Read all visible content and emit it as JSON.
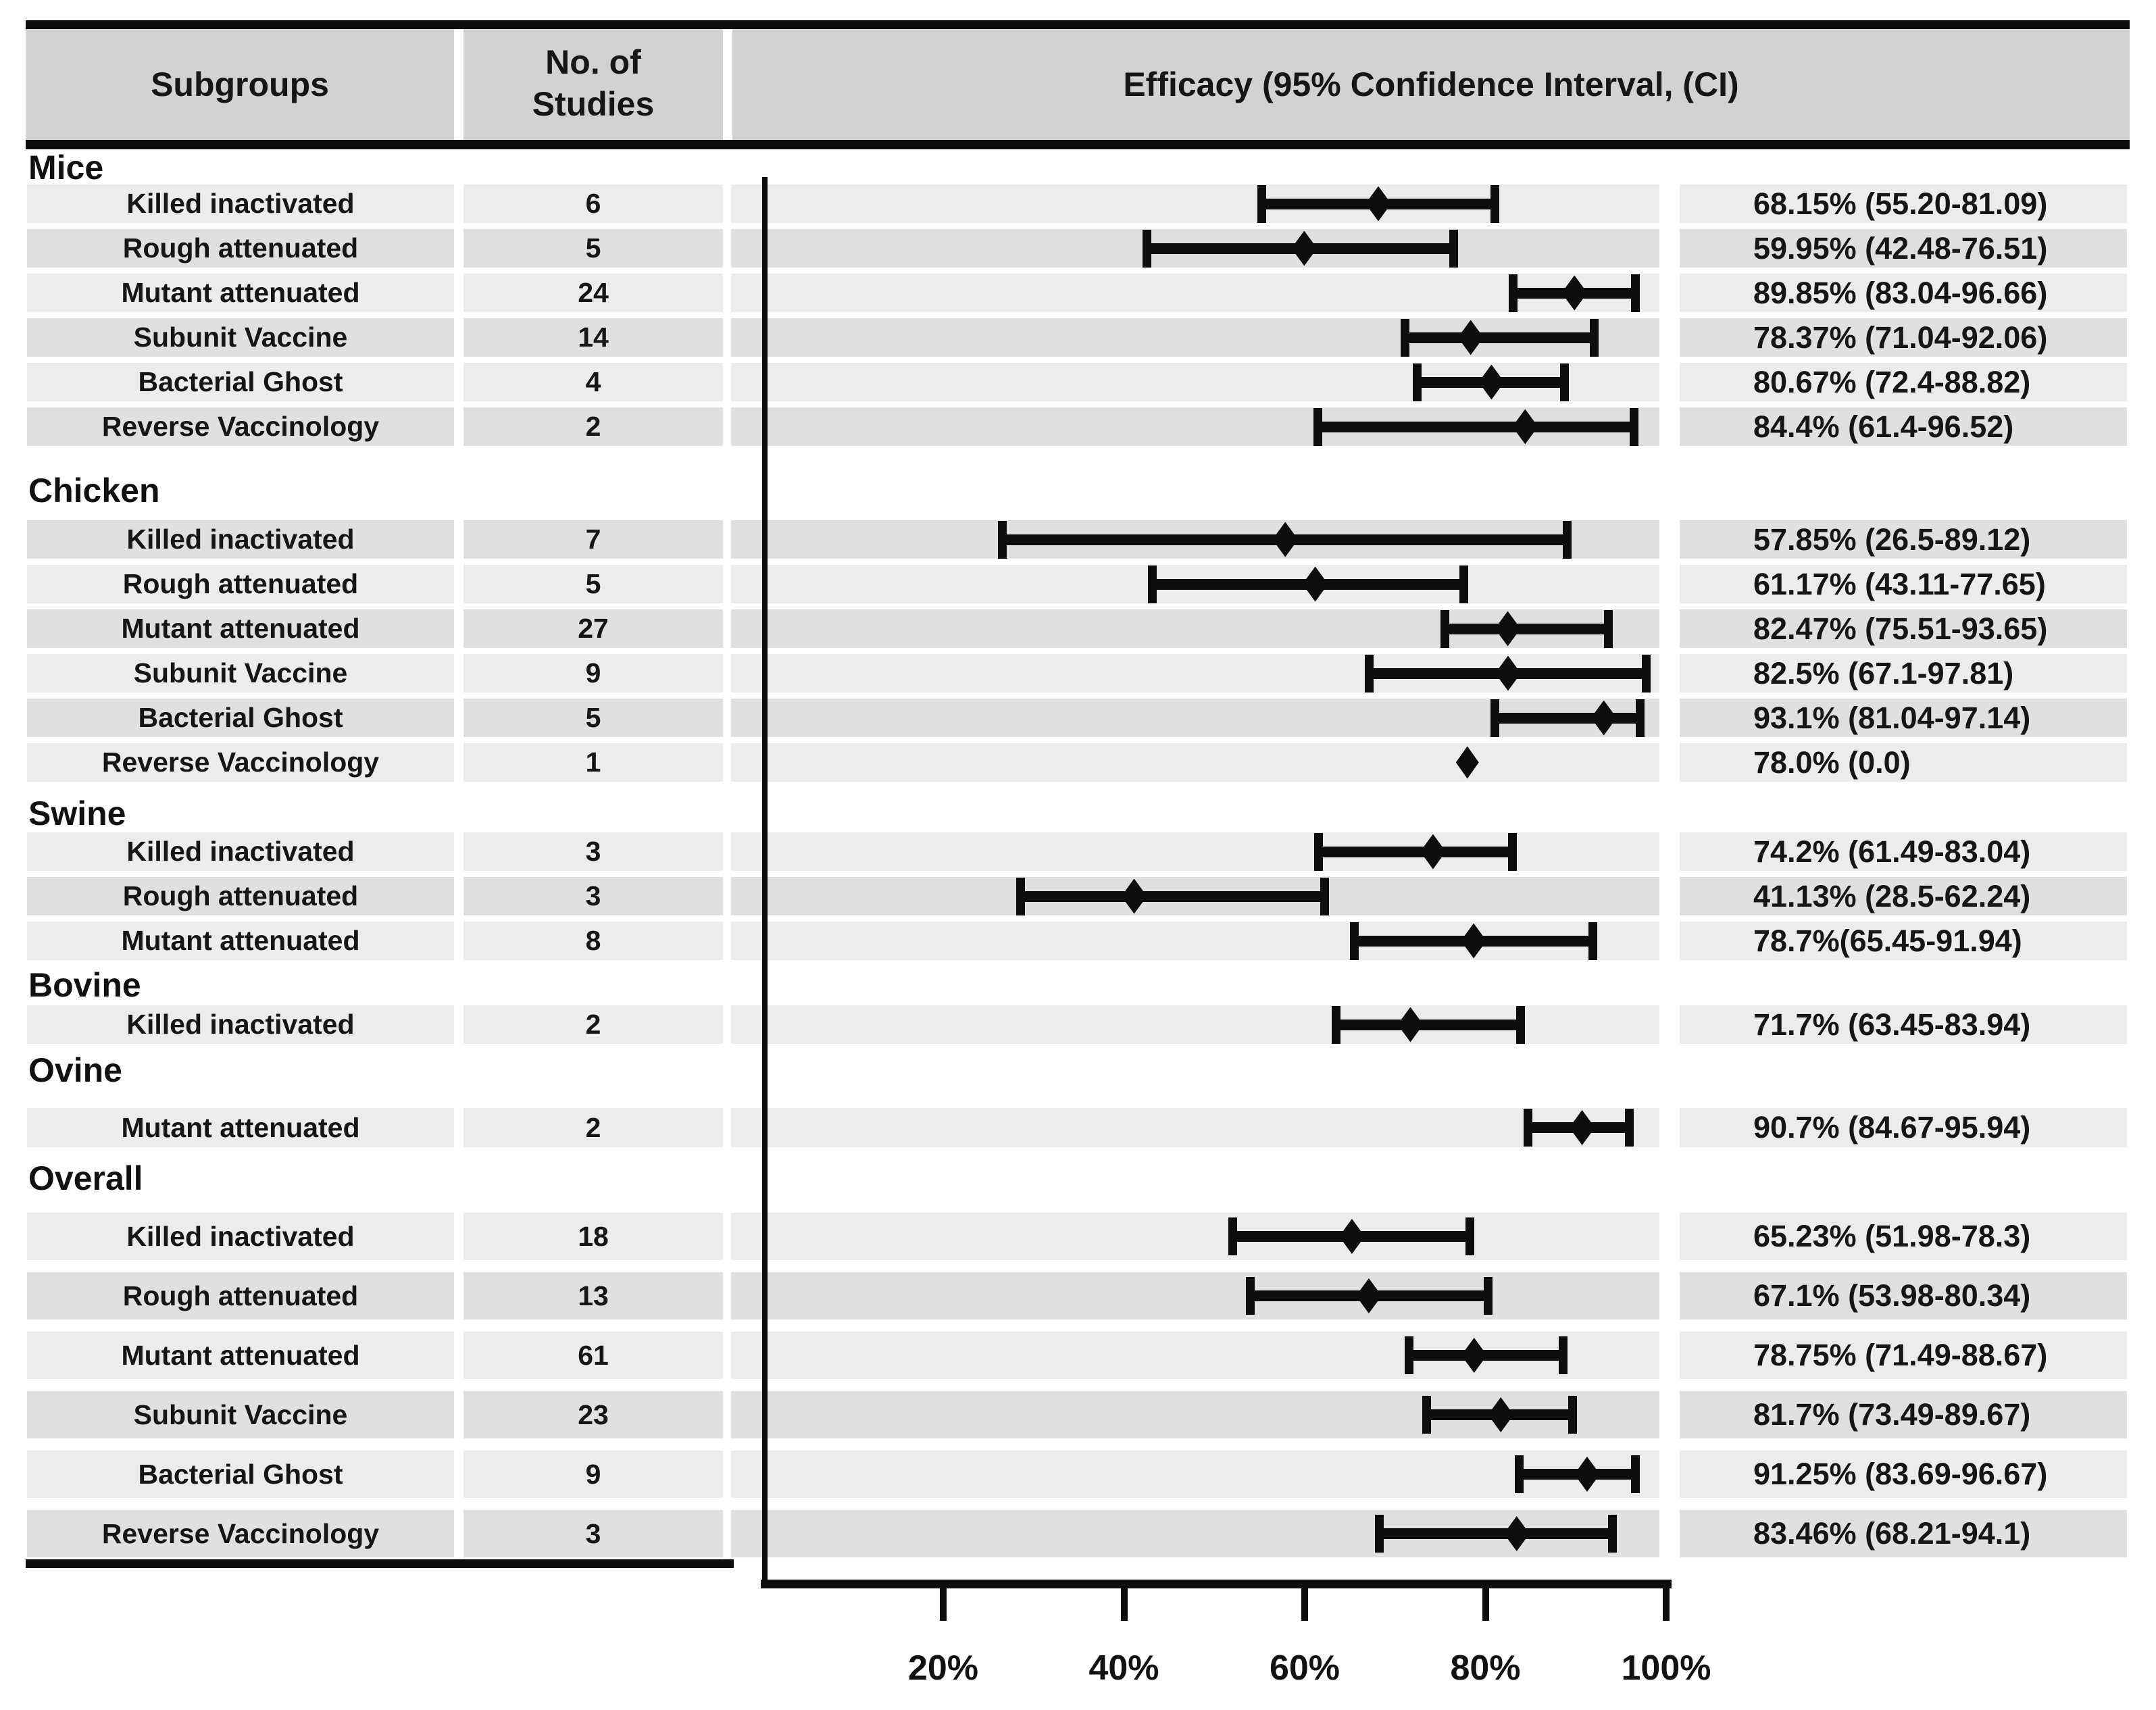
{
  "header": {
    "col_subgroups": "Subgroups",
    "col_studies_line1": "No. of",
    "col_studies_line2": "Studies",
    "col_efficacy": "Efficacy (95% Confidence Interval, (CI)"
  },
  "chart_data": {
    "type": "forest",
    "title": "Efficacy (95% Confidence Interval, (CI)",
    "unit": "%",
    "axis": {
      "xmin": 0,
      "xmax": 105,
      "tick_values": [
        20,
        40,
        60,
        80,
        100
      ],
      "tick_labels": [
        "20%",
        "40%",
        "60%",
        "80%",
        "100%"
      ],
      "grid": false
    },
    "legend": null,
    "groups": [
      {
        "name": "Mice",
        "rows": [
          {
            "label": "Killed inactivated",
            "n_studies": "6",
            "estimate": 68.15,
            "ci_low": 55.2,
            "ci_high": 81.09,
            "text": "68.15% (55.20-81.09)"
          },
          {
            "label": "Rough attenuated",
            "n_studies": "5",
            "estimate": 59.95,
            "ci_low": 42.48,
            "ci_high": 76.51,
            "text": "59.95% (42.48-76.51)"
          },
          {
            "label": "Mutant attenuated",
            "n_studies": "24",
            "estimate": 89.85,
            "ci_low": 83.04,
            "ci_high": 96.66,
            "text": "89.85% (83.04-96.66)"
          },
          {
            "label": "Subunit Vaccine",
            "n_studies": "14",
            "estimate": 78.37,
            "ci_low": 71.04,
            "ci_high": 92.06,
            "text": "78.37% (71.04-92.06)"
          },
          {
            "label": "Bacterial Ghost",
            "n_studies": "4",
            "estimate": 80.67,
            "ci_low": 72.4,
            "ci_high": 88.82,
            "text": "80.67% (72.4-88.82)"
          },
          {
            "label": "Reverse Vaccinology",
            "n_studies": "2",
            "estimate": 84.4,
            "ci_low": 61.4,
            "ci_high": 96.52,
            "text": "84.4% (61.4-96.52)"
          }
        ]
      },
      {
        "name": "Chicken",
        "rows": [
          {
            "label": "Killed inactivated",
            "n_studies": "7",
            "estimate": 57.85,
            "ci_low": 26.5,
            "ci_high": 89.12,
            "text": "57.85% (26.5-89.12)"
          },
          {
            "label": "Rough attenuated",
            "n_studies": "5",
            "estimate": 61.17,
            "ci_low": 43.11,
            "ci_high": 77.65,
            "text": "61.17% (43.11-77.65)"
          },
          {
            "label": "Mutant attenuated",
            "n_studies": "27",
            "estimate": 82.47,
            "ci_low": 75.51,
            "ci_high": 93.65,
            "text": "82.47% (75.51-93.65)"
          },
          {
            "label": "Subunit Vaccine",
            "n_studies": "9",
            "estimate": 82.5,
            "ci_low": 67.1,
            "ci_high": 97.81,
            "text": "82.5% (67.1-97.81)"
          },
          {
            "label": "Bacterial Ghost",
            "n_studies": "5",
            "estimate": 93.1,
            "ci_low": 81.04,
            "ci_high": 97.14,
            "text": "93.1% (81.04-97.14)"
          },
          {
            "label": "Reverse Vaccinology",
            "n_studies": "1",
            "estimate": 78.0,
            "ci_low": null,
            "ci_high": null,
            "text": "78.0% (0.0)"
          }
        ]
      },
      {
        "name": "Swine",
        "rows": [
          {
            "label": "Killed inactivated",
            "n_studies": "3",
            "estimate": 74.2,
            "ci_low": 61.49,
            "ci_high": 83.04,
            "text": "74.2% (61.49-83.04)"
          },
          {
            "label": "Rough attenuated",
            "n_studies": "3",
            "estimate": 41.13,
            "ci_low": 28.5,
            "ci_high": 62.24,
            "text": "41.13% (28.5-62.24)"
          },
          {
            "label": "Mutant attenuated",
            "n_studies": "8",
            "estimate": 78.7,
            "ci_low": 65.45,
            "ci_high": 91.94,
            "text": "78.7%(65.45-91.94)"
          }
        ]
      },
      {
        "name": "Bovine",
        "rows": [
          {
            "label": "Killed inactivated",
            "n_studies": "2",
            "estimate": 71.7,
            "ci_low": 63.45,
            "ci_high": 83.94,
            "text": "71.7% (63.45-83.94)"
          }
        ]
      },
      {
        "name": "Ovine",
        "rows": [
          {
            "label": "Mutant attenuated",
            "n_studies": "2",
            "estimate": 90.7,
            "ci_low": 84.67,
            "ci_high": 95.94,
            "text": "90.7% (84.67-95.94)"
          }
        ]
      },
      {
        "name": "Overall",
        "rows": [
          {
            "label": "Killed inactivated",
            "n_studies": "18",
            "estimate": 65.23,
            "ci_low": 51.98,
            "ci_high": 78.3,
            "text": "65.23% (51.98-78.3)"
          },
          {
            "label": "Rough attenuated",
            "n_studies": "13",
            "estimate": 67.1,
            "ci_low": 53.98,
            "ci_high": 80.34,
            "text": "67.1% (53.98-80.34)"
          },
          {
            "label": "Mutant attenuated",
            "n_studies": "61",
            "estimate": 78.75,
            "ci_low": 71.49,
            "ci_high": 88.67,
            "text": "78.75% (71.49-88.67)"
          },
          {
            "label": "Subunit Vaccine",
            "n_studies": "23",
            "estimate": 81.7,
            "ci_low": 73.49,
            "ci_high": 89.67,
            "text": "81.7% (73.49-89.67)"
          },
          {
            "label": "Bacterial Ghost",
            "n_studies": "9",
            "estimate": 91.25,
            "ci_low": 83.69,
            "ci_high": 96.67,
            "text": "91.25% (83.69-96.67)"
          },
          {
            "label": "Reverse Vaccinology",
            "n_studies": "3",
            "estimate": 83.46,
            "ci_low": 68.21,
            "ci_high": 94.1,
            "text": "83.46% (68.21-94.1)"
          }
        ]
      }
    ]
  }
}
